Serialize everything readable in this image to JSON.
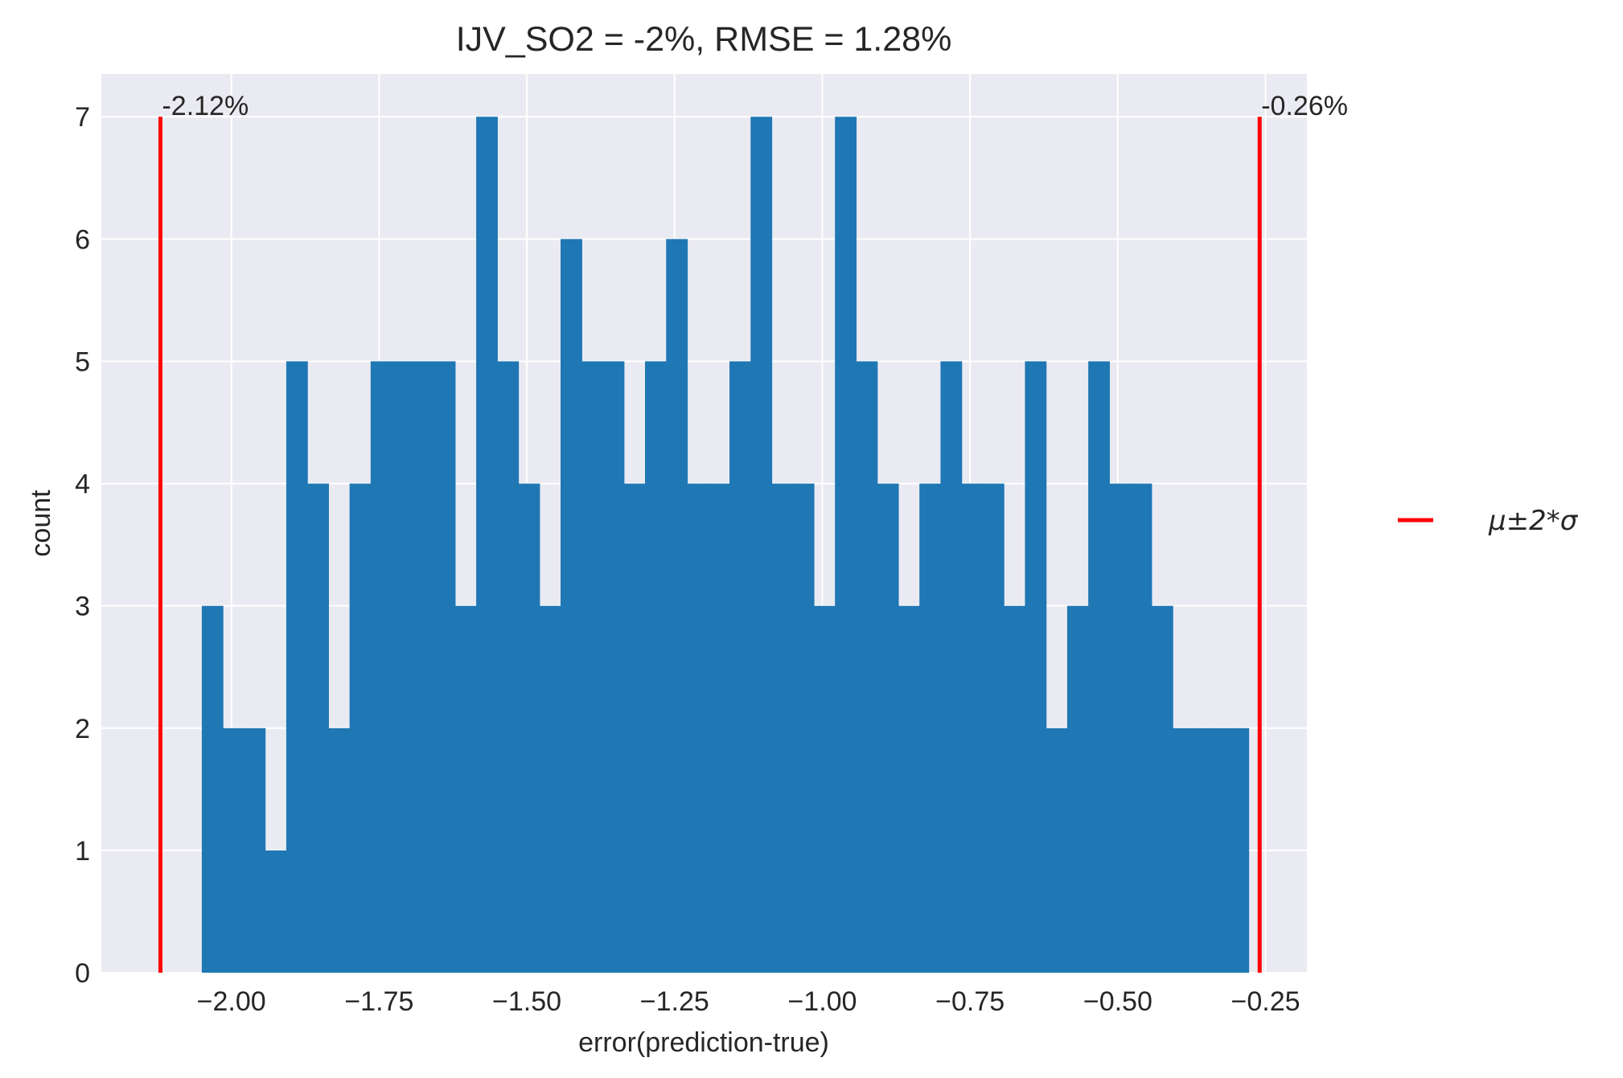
{
  "chart_data": {
    "type": "bar",
    "title": "IJV_SO2 = -2%, RMSE = 1.28%",
    "xlabel": "error(prediction-true)",
    "ylabel": "count",
    "xlim": [
      -2.22,
      -0.18
    ],
    "ylim": [
      0,
      7.35
    ],
    "xticks": [
      -2.0,
      -1.75,
      -1.5,
      -1.25,
      -1.0,
      -0.75,
      -0.5,
      -0.25
    ],
    "xtick_labels": [
      "−2.00",
      "−1.75",
      "−1.50",
      "−1.25",
      "−1.00",
      "−0.75",
      "−0.50",
      "−0.25"
    ],
    "yticks": [
      0,
      1,
      2,
      3,
      4,
      5,
      6,
      7
    ],
    "ytick_labels": [
      "0",
      "1",
      "2",
      "3",
      "4",
      "5",
      "6",
      "7"
    ],
    "grid": true,
    "bin_edges": [
      -2.05,
      -2.0143,
      -1.9786,
      -1.9429,
      -1.9071,
      -1.8714,
      -1.8357,
      -1.8,
      -1.7643,
      -1.7286,
      -1.6929,
      -1.6571,
      -1.6214,
      -1.5857,
      -1.55,
      -1.5143,
      -1.4786,
      -1.4429,
      -1.4071,
      -1.3714,
      -1.3357,
      -1.3,
      -1.2643,
      -1.2286,
      -1.1929,
      -1.1571,
      -1.1214,
      -1.0857,
      -1.05,
      -1.0143,
      -0.9786,
      -0.9429,
      -0.9071,
      -0.8714,
      -0.8357,
      -0.8,
      -0.7643,
      -0.7286,
      -0.6929,
      -0.6571,
      -0.6214,
      -0.5857,
      -0.55,
      -0.5143,
      -0.4786,
      -0.4429,
      -0.4071,
      -0.3714,
      -0.3357,
      -0.3,
      -0.2786
    ],
    "counts": [
      3,
      2,
      2,
      1,
      5,
      4,
      2,
      4,
      5,
      5,
      5,
      5,
      3,
      7,
      5,
      4,
      3,
      6,
      5,
      5,
      4,
      5,
      6,
      4,
      4,
      5,
      7,
      4,
      4,
      3,
      7,
      5,
      4,
      3,
      4,
      5,
      4,
      4,
      3,
      5,
      2,
      3,
      5,
      4,
      4,
      3,
      2,
      2,
      2,
      2
    ],
    "bar_color": "#1f77b4",
    "vlines": [
      {
        "x": -2.12,
        "label": "-2.12%",
        "color": "#ff0000"
      },
      {
        "x": -0.26,
        "label": "-0.26%",
        "color": "#ff0000"
      }
    ],
    "legend": {
      "placement": "right",
      "entries": [
        {
          "label": "μ±2*σ",
          "color": "#ff0000"
        }
      ]
    },
    "background": "#eaeaf2",
    "grid_color": "#ffffff"
  }
}
